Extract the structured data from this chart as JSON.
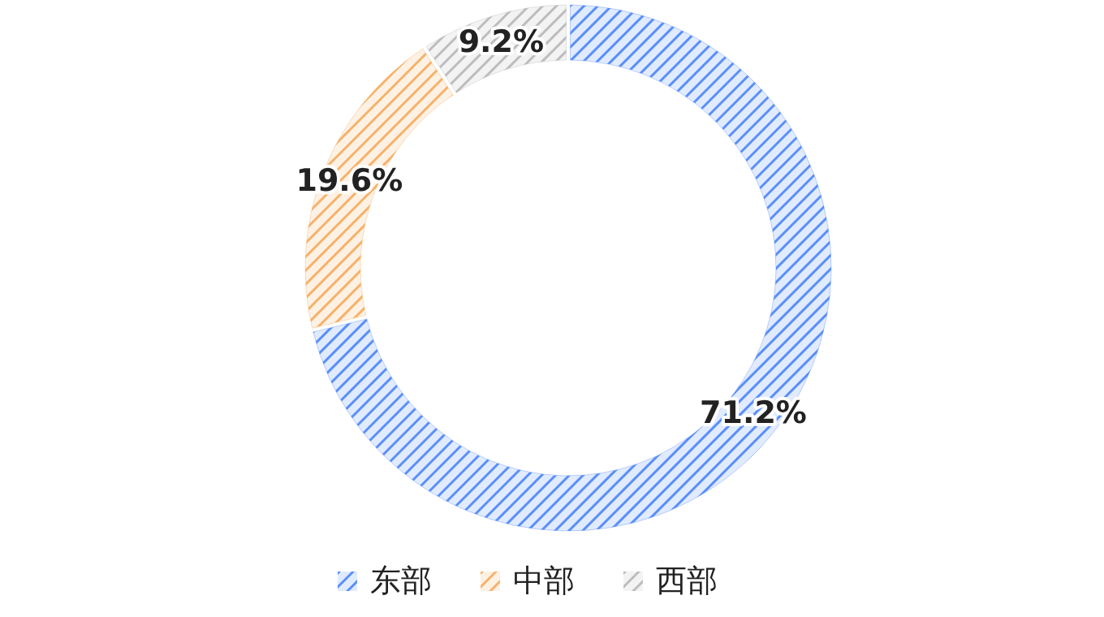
{
  "chart_data": {
    "type": "donut",
    "categories": [
      "东部",
      "中部",
      "西部"
    ],
    "values": [
      71.2,
      19.6,
      9.2
    ],
    "colors": [
      "#5b8ff9",
      "#f6b26b",
      "#bdbdbd"
    ],
    "value_labels": [
      "71.2%",
      "19.6%",
      "9.2%"
    ],
    "legend": "bottom"
  }
}
